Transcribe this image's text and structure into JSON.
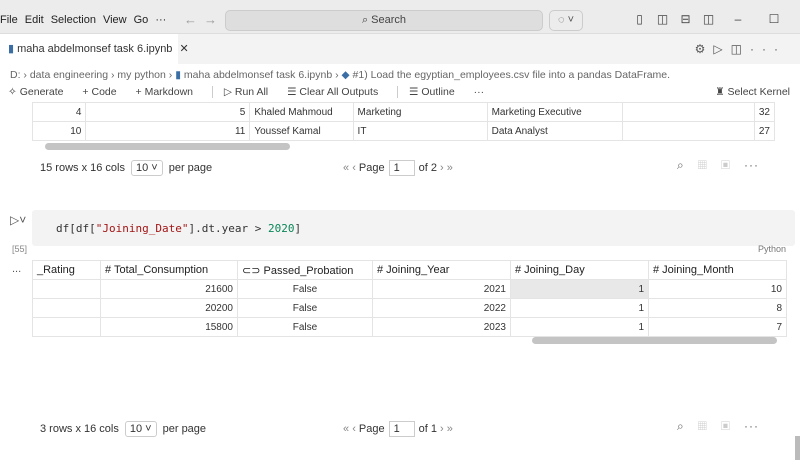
{
  "menu": [
    "File",
    "Edit",
    "Selection",
    "View",
    "Go",
    "···"
  ],
  "search": {
    "label": "Search"
  },
  "tab": {
    "title": "maha abdelmonsef task 6.ipynb"
  },
  "breadcrumb": [
    "D:",
    "data engineering",
    "my python",
    "maha abdelmonsef task 6.ipynb",
    "#1) Load the egyptian_employees.csv file into a pandas DataFrame."
  ],
  "toolbar": {
    "generate": "Generate",
    "code": "Code",
    "markdown": "Markdown",
    "run_all": "Run All",
    "clear": "Clear All Outputs",
    "outline": "Outline",
    "more": "···",
    "kernel": "Select Kernel"
  },
  "table1": {
    "rows": [
      [
        "4",
        "5",
        "Khaled Mahmoud",
        "Marketing",
        "Marketing Executive",
        "",
        "32"
      ],
      [
        "10",
        "11",
        "Youssef Kamal",
        "IT",
        "Data Analyst",
        "",
        "27"
      ]
    ],
    "footer": {
      "rows_cols": "15 rows x 16 cols",
      "per_page_value": "10",
      "per_page": "per page",
      "page_label": "Page",
      "page": "1",
      "of": "of 2"
    }
  },
  "cell": {
    "code_prefix": "df[df[",
    "code_string": "\"Joining_Date\"",
    "code_mid": "].dt.year > ",
    "code_num": "2020",
    "code_suffix": "]",
    "exec": "[55]",
    "lang": "Python",
    "more": "..."
  },
  "table2": {
    "headers": [
      "_Rating",
      "# Total_Consumption",
      "Passed_Probation",
      "# Joining_Year",
      "# Joining_Day",
      "# Joining_Month"
    ],
    "rows": [
      [
        "",
        "21600",
        "False",
        "2021",
        "1",
        "10"
      ],
      [
        "",
        "20200",
        "False",
        "2022",
        "1",
        "8"
      ],
      [
        "",
        "15800",
        "False",
        "2023",
        "1",
        "7"
      ]
    ],
    "footer": {
      "rows_cols": "3 rows x 16 cols",
      "per_page_value": "10",
      "per_page": "per page",
      "page_label": "Page",
      "page": "1",
      "of": "of 1"
    }
  }
}
